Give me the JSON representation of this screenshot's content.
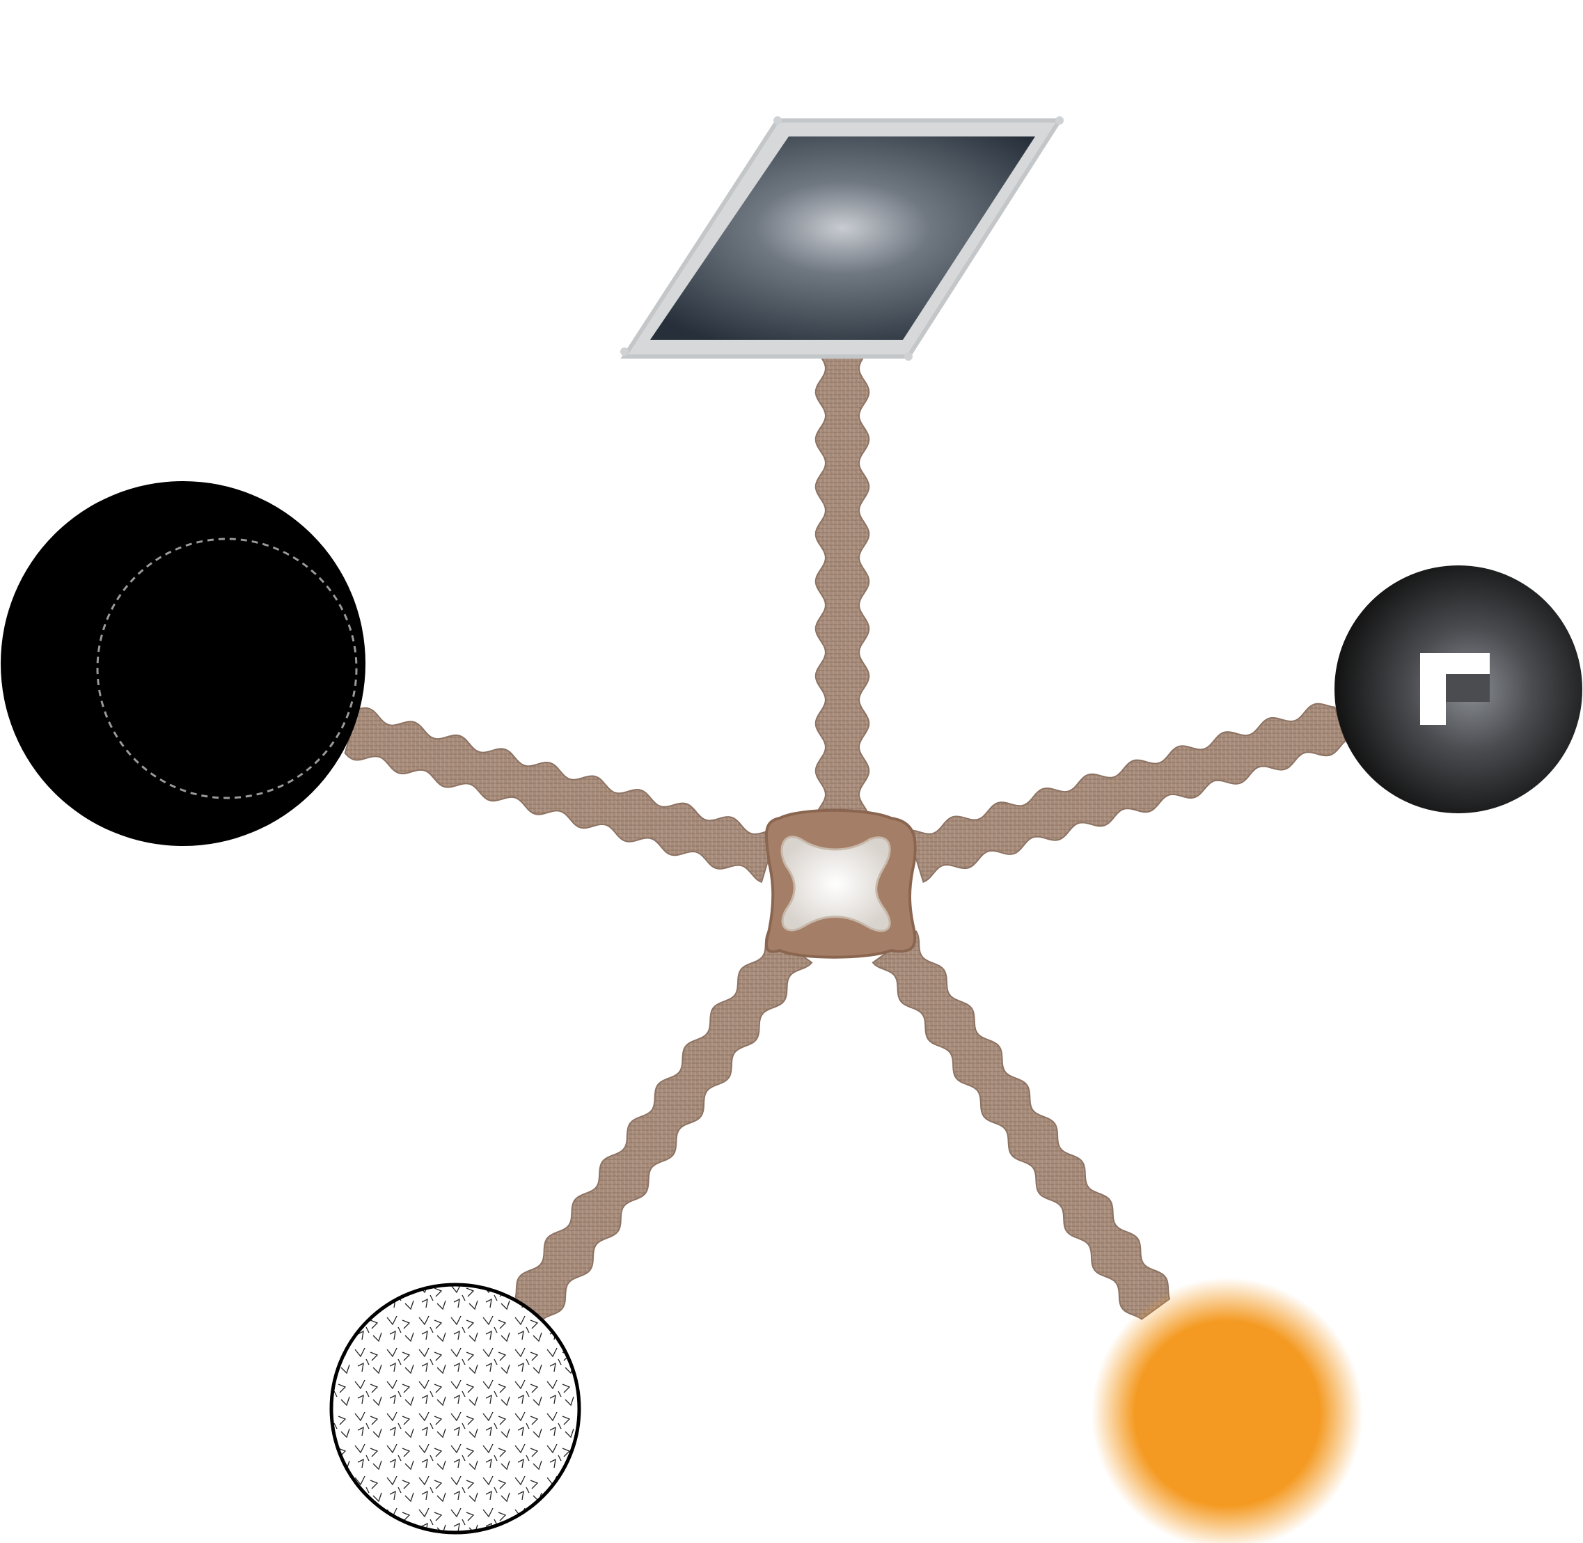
{
  "diagram": {
    "background": "#ffffff",
    "hub": {
      "shape": "rounded square with four-lobed inset",
      "frame_color": "#a47e66",
      "inner_color": "#f1efec"
    },
    "linker": {
      "style": "wavy textured chain",
      "color": "#a88d7c",
      "texture": "burlap"
    },
    "nodes": [
      {
        "shape": "parallelogram",
        "fill": "#4d5660",
        "border": "#d6d8d9",
        "style": "radial-glow panel"
      },
      {
        "shape": "circle",
        "fill": "#000000",
        "style": "solid with dashed inner ring"
      },
      {
        "shape": "circle",
        "fill": "#1a1a1a",
        "style": "radial glow with square notch icon"
      },
      {
        "shape": "circle",
        "fill": "#ffffff",
        "border": "#000000",
        "style": "hatched pattern"
      },
      {
        "shape": "circle",
        "fill": "#f49a22",
        "style": "soft-edged orange glow"
      }
    ]
  }
}
